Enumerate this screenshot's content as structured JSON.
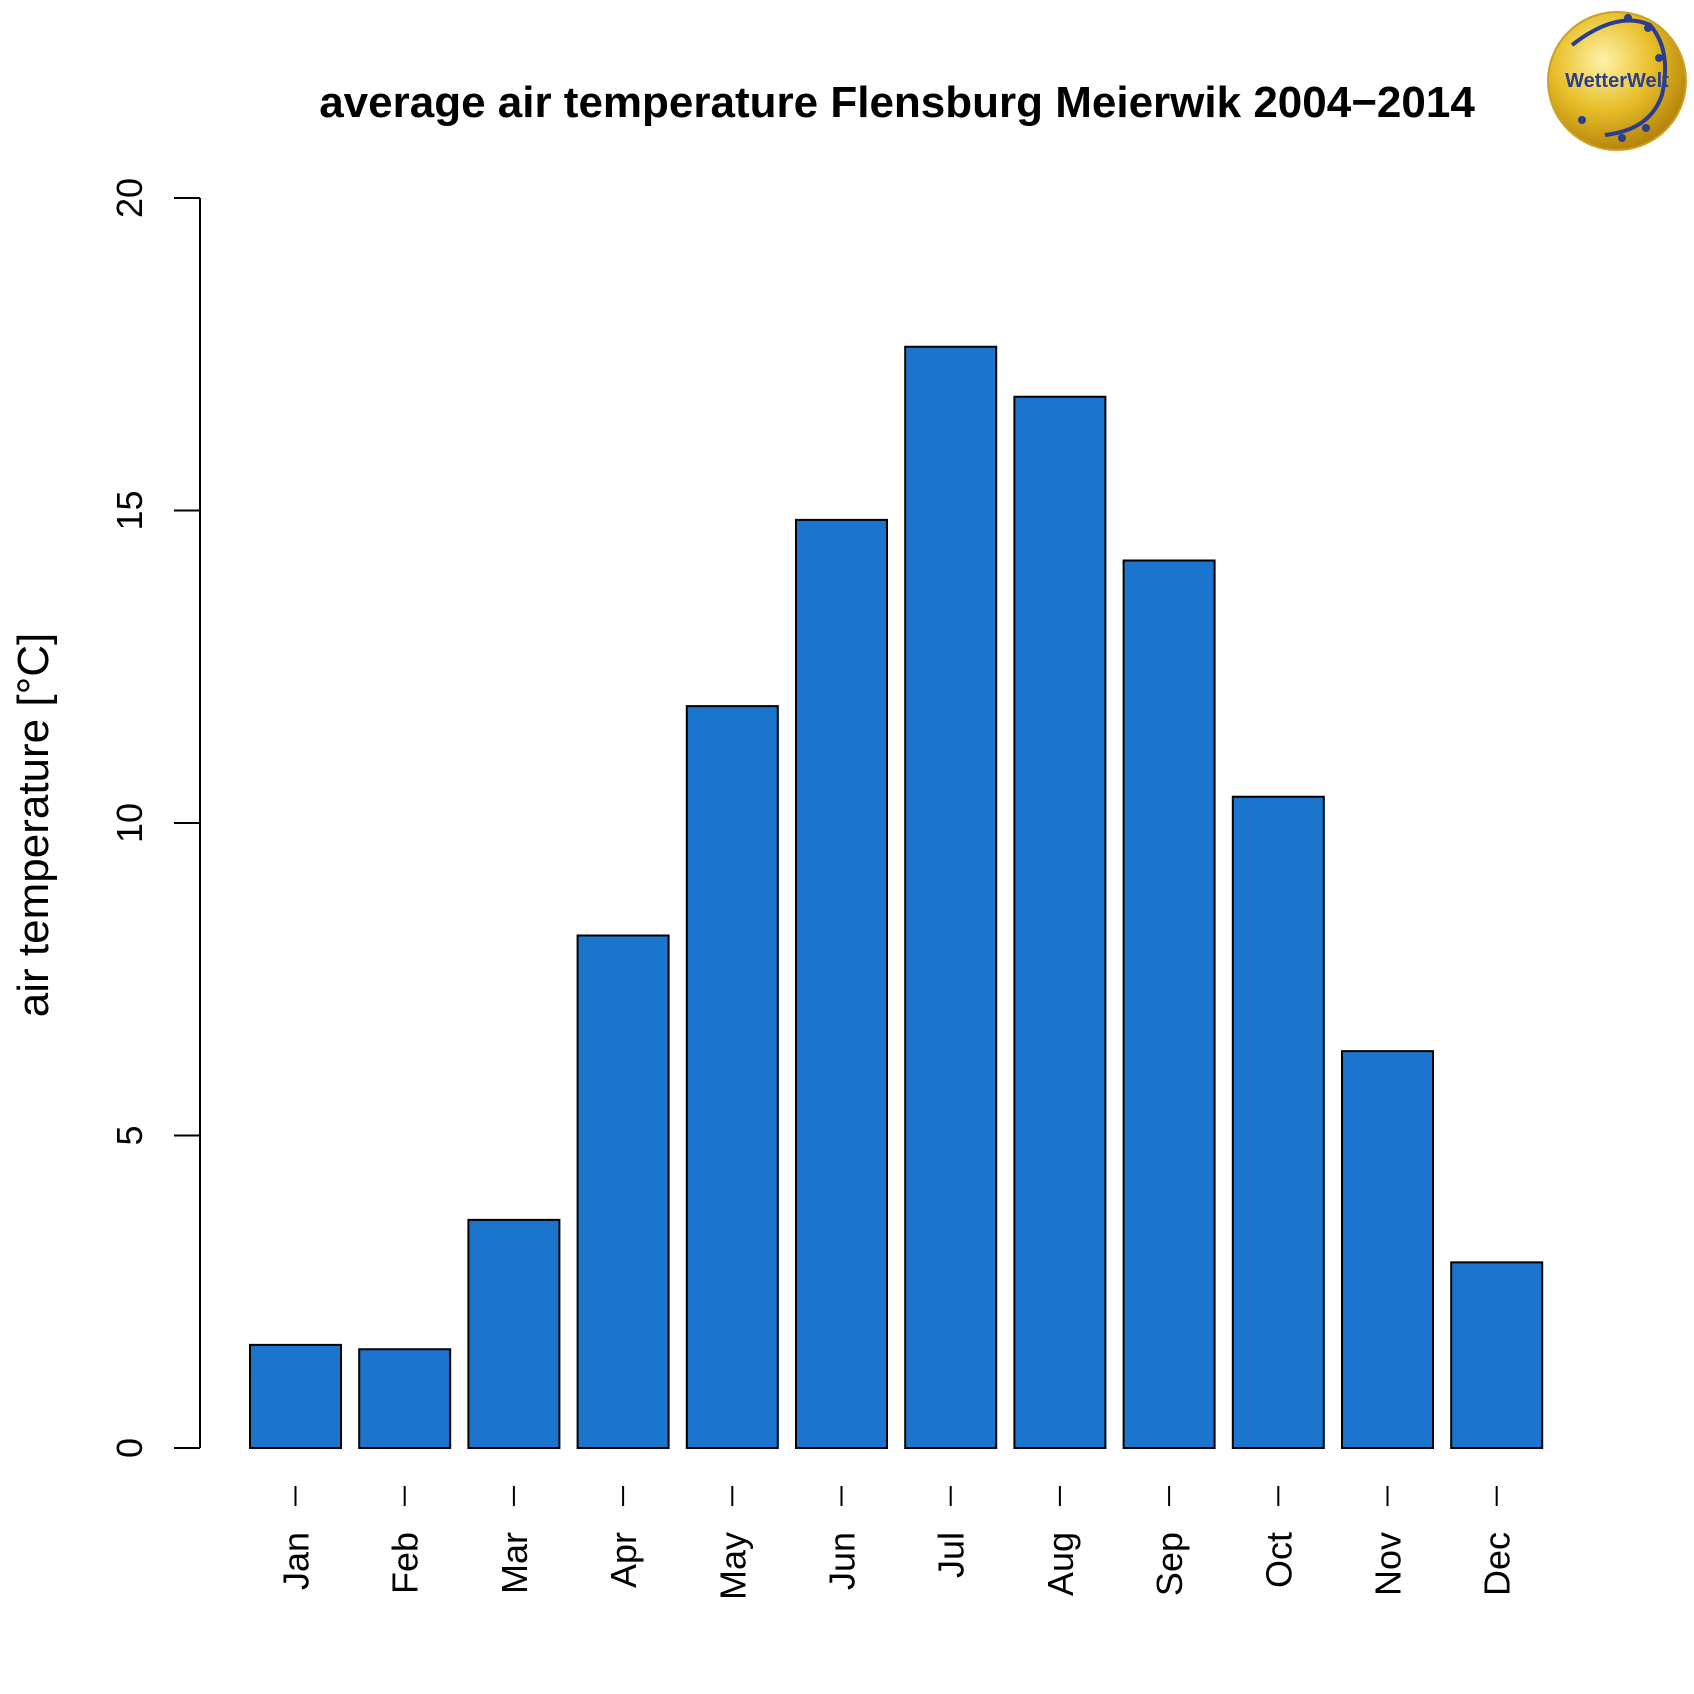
{
  "chart_data": {
    "type": "bar",
    "title": "average air temperature Flensburg Meierwik 2004−2014",
    "xlabel": "",
    "ylabel": "air temperature [°C]",
    "categories": [
      "Jan",
      "Feb",
      "Mar",
      "Apr",
      "May",
      "Jun",
      "Jul",
      "Aug",
      "Sep",
      "Oct",
      "Nov",
      "Dec"
    ],
    "values": [
      1.65,
      1.58,
      3.65,
      8.2,
      11.87,
      14.85,
      17.62,
      16.82,
      14.2,
      10.42,
      6.35,
      2.97
    ],
    "ylim": [
      0,
      20
    ],
    "yticks": [
      0,
      5,
      10,
      15,
      20
    ],
    "bar_color": "#1c75cc",
    "bar_border_color": "#000000",
    "grid": false,
    "legend": "none"
  },
  "logo": {
    "text": "WetterWelt",
    "background_color": "#e8bf2a",
    "text_color": "#2a3d8f"
  }
}
